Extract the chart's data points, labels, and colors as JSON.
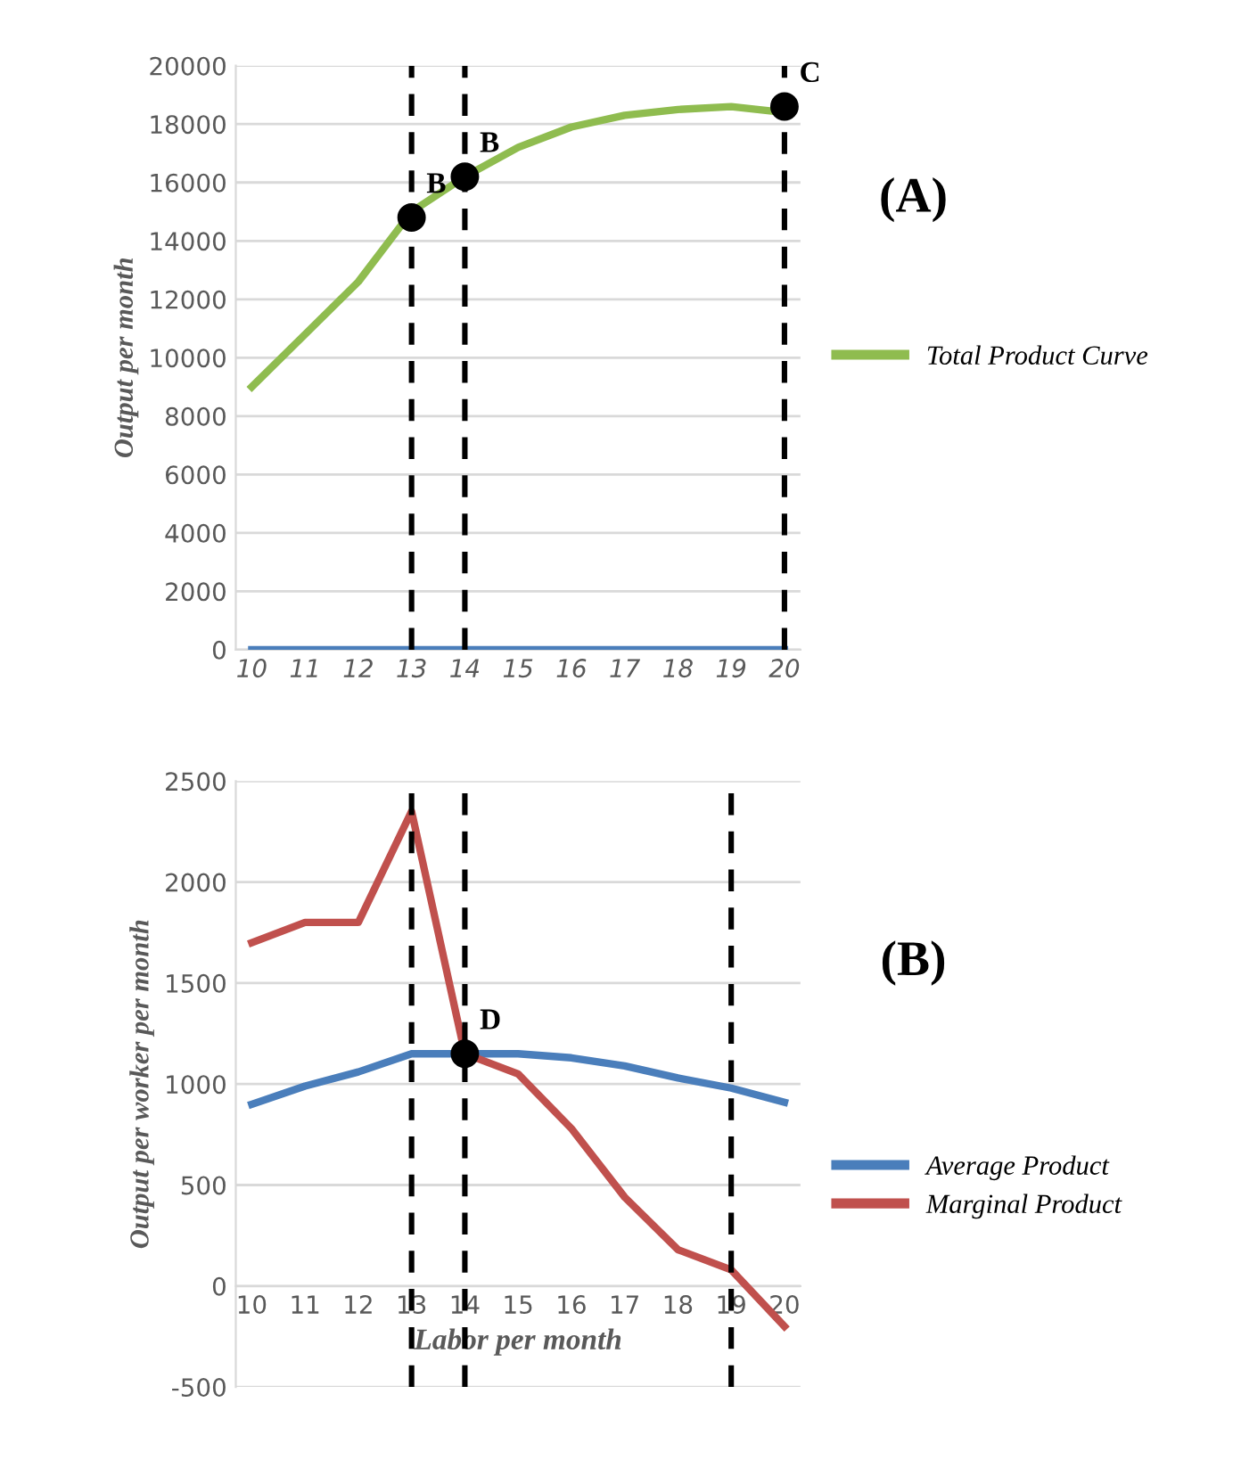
{
  "chart_data": [
    {
      "type": "line",
      "ylabel": "Output per month",
      "categories": [
        "10",
        "11",
        "12",
        "13",
        "14",
        "15",
        "16",
        "17",
        "18",
        "19",
        "20"
      ],
      "series": [
        {
          "name": "Total Product Curve",
          "color": "#8fbc4f",
          "values": [
            9000,
            10800,
            12600,
            15000,
            16200,
            17200,
            17900,
            18300,
            18500,
            18600,
            18400
          ]
        },
        {
          "color": "#4a7ebb",
          "values": [
            0,
            0,
            0,
            0,
            0,
            0,
            0,
            0,
            0,
            0,
            0
          ]
        },
        {
          "type": "scatter",
          "color": "#000000",
          "x": [
            "13",
            "14",
            "20"
          ],
          "values": [
            14800,
            16200,
            18600
          ]
        }
      ],
      "ylim": [
        0,
        20000
      ],
      "yticks": [
        0,
        2000,
        4000,
        6000,
        8000,
        10000,
        12000,
        14000,
        16000,
        18000,
        20000
      ],
      "grid": "y",
      "legend": "right",
      "ref_lines": [
        {
          "axis": "x",
          "value": "13",
          "color": "#000000",
          "line_style": "dashed"
        },
        {
          "axis": "x",
          "value": "14",
          "color": "#000000",
          "line_style": "dashed"
        },
        {
          "axis": "x",
          "value": "20",
          "color": "#000000",
          "line_style": "dashed"
        }
      ],
      "annotations": [
        {
          "text": "B",
          "x": "13",
          "y": 14800
        },
        {
          "text": "B",
          "x": "14",
          "y": 16200
        },
        {
          "text": "C",
          "x": "20",
          "y": 18600
        },
        "(A)"
      ]
    },
    {
      "type": "line",
      "xlabel": "Labor per month",
      "ylabel": "Output per worker per month",
      "categories": [
        "10",
        "11",
        "12",
        "13",
        "14",
        "15",
        "16",
        "17",
        "18",
        "19",
        "20"
      ],
      "series": [
        {
          "name": "Average Product",
          "color": "#4a7ebb",
          "values": [
            900,
            990,
            1060,
            1150,
            1150,
            1150,
            1130,
            1090,
            1030,
            980,
            910
          ]
        },
        {
          "name": "Marginal Product",
          "color": "#c0504d",
          "values": [
            1700,
            1800,
            1800,
            2350,
            1150,
            1050,
            780,
            440,
            180,
            80,
            -200
          ]
        },
        {
          "type": "scatter",
          "color": "#000000",
          "x": [
            "14"
          ],
          "values": [
            1150
          ]
        }
      ],
      "ylim": [
        -500,
        2500
      ],
      "yticks": [
        -500,
        0,
        500,
        1000,
        1500,
        2000,
        2500
      ],
      "grid": "y",
      "legend": "right",
      "ref_lines": [
        {
          "axis": "x",
          "value": "13",
          "color": "#000000",
          "line_style": "dashed"
        },
        {
          "axis": "x",
          "value": "14",
          "color": "#000000",
          "line_style": "dashed"
        },
        {
          "axis": "x",
          "value": "19",
          "color": "#000000",
          "line_style": "dashed"
        }
      ],
      "annotations": [
        {
          "text": "D",
          "x": "14",
          "y": 1150
        },
        "(B)"
      ]
    }
  ]
}
